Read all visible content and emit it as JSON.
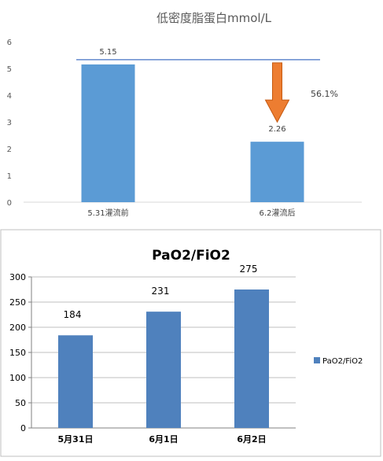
{
  "chart_data": [
    {
      "type": "bar",
      "title": "低密度脂蛋白mmol/L",
      "categories": [
        "5.31灌流前",
        "6.2灌流后"
      ],
      "values": [
        5.15,
        2.26
      ],
      "data_labels": [
        "5.15",
        "2.26"
      ],
      "ylim": [
        0,
        6
      ],
      "yticks": [
        0,
        1,
        2,
        3,
        4,
        5,
        6
      ],
      "grid": false,
      "bar_color": "#5b9bd5",
      "reference_line": {
        "value": 5.15,
        "color": "#4472c4"
      },
      "annotation": {
        "text": "56.1%",
        "arrow": "down",
        "from": 5.15,
        "to": 2.26,
        "arrow_color": "#ed7d31"
      }
    },
    {
      "type": "bar",
      "title": "PaO2/FiO2",
      "categories": [
        "5月31日",
        "6月1日",
        "6月2日"
      ],
      "values": [
        184,
        231,
        275
      ],
      "data_labels": [
        "184",
        "231",
        "275"
      ],
      "ylim": [
        0,
        300
      ],
      "yticks": [
        0,
        50,
        100,
        150,
        200,
        250,
        300
      ],
      "grid": true,
      "legend": {
        "entries": [
          "PaO2/FiO2"
        ],
        "position": "right"
      },
      "bar_color": "#4f81bd"
    }
  ]
}
